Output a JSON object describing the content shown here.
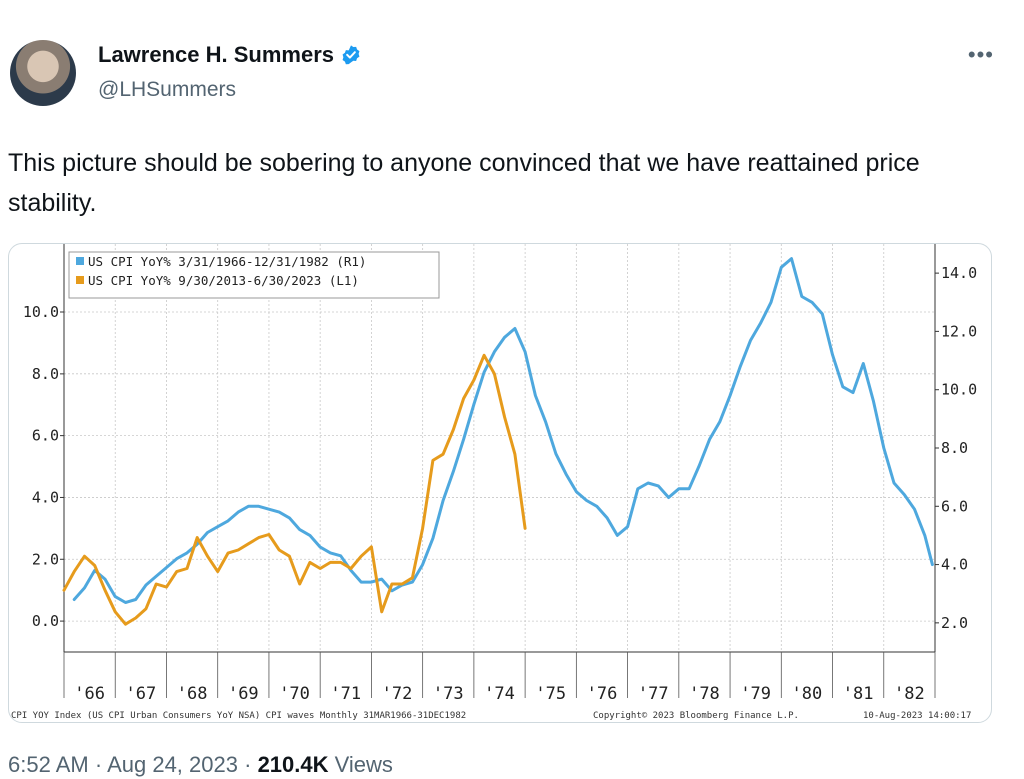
{
  "tweet": {
    "author_name": "Lawrence H. Summers",
    "handle": "@LHSummers",
    "text": "This picture should be sobering to anyone convinced that we have reattained price stability.",
    "time": "6:52 AM",
    "date": "Aug 24, 2023",
    "views_count": "210.4K",
    "views_label": "Views",
    "separator": "·",
    "more_icon": "more-horizontal-icon",
    "verified_icon": "verified-badge-icon",
    "verified_color": "#1d9bf0"
  },
  "chart_data": {
    "type": "line",
    "legend": [
      {
        "label": "US CPI YoY% 3/31/1966-12/31/1982 (R1)",
        "color": "#4ea8de"
      },
      {
        "label": "US CPI YoY% 9/30/2013-6/30/2023 (L1)",
        "color": "#e69b1c"
      }
    ],
    "left_axis": {
      "ylim": [
        -1.0,
        12.2
      ],
      "ticks": [
        "0.0",
        "2.0",
        "4.0",
        "6.0",
        "8.0",
        "10.0"
      ],
      "tick_values": [
        0,
        2,
        4,
        6,
        8,
        10
      ]
    },
    "right_axis": {
      "ylim": [
        1.0,
        15.0
      ],
      "ticks": [
        "2.0",
        "4.0",
        "6.0",
        "8.0",
        "10.0",
        "12.0",
        "14.0"
      ],
      "tick_values": [
        2,
        4,
        6,
        8,
        10,
        12,
        14
      ]
    },
    "x_ticks": [
      "'66",
      "'67",
      "'68",
      "'69",
      "'70",
      "'71",
      "'72",
      "'73",
      "'74",
      "'75",
      "'76",
      "'77",
      "'78",
      "'79",
      "'80",
      "'81",
      "'82"
    ],
    "xlim": [
      1966.0,
      1983.0
    ],
    "series": [
      {
        "name": "US CPI YoY% 3/31/1966-12/31/1982 (R1)",
        "axis": "right",
        "color": "#4ea8de",
        "x": [
          1966.2,
          1966.4,
          1966.6,
          1966.8,
          1967.0,
          1967.2,
          1967.4,
          1967.6,
          1967.8,
          1968.0,
          1968.2,
          1968.4,
          1968.6,
          1968.8,
          1969.0,
          1969.2,
          1969.4,
          1969.6,
          1969.8,
          1970.0,
          1970.2,
          1970.4,
          1970.6,
          1970.8,
          1971.0,
          1971.2,
          1971.4,
          1971.6,
          1971.8,
          1972.0,
          1972.2,
          1972.4,
          1972.6,
          1972.8,
          1973.0,
          1973.2,
          1973.4,
          1973.6,
          1973.8,
          1974.0,
          1974.2,
          1974.4,
          1974.6,
          1974.8,
          1975.0,
          1975.2,
          1975.4,
          1975.6,
          1975.8,
          1976.0,
          1976.2,
          1976.4,
          1976.6,
          1976.8,
          1977.0,
          1977.2,
          1977.4,
          1977.6,
          1977.8,
          1978.0,
          1978.2,
          1978.4,
          1978.6,
          1978.8,
          1979.0,
          1979.2,
          1979.4,
          1979.6,
          1979.8,
          1980.0,
          1980.2,
          1980.4,
          1980.6,
          1980.8,
          1981.0,
          1981.2,
          1981.4,
          1981.6,
          1981.8,
          1982.0,
          1982.2,
          1982.4,
          1982.6,
          1982.8,
          1982.95
        ],
        "values": [
          2.8,
          3.2,
          3.8,
          3.5,
          2.9,
          2.7,
          2.8,
          3.3,
          3.6,
          3.9,
          4.2,
          4.4,
          4.7,
          5.1,
          5.3,
          5.5,
          5.8,
          6.0,
          6.0,
          5.9,
          5.8,
          5.6,
          5.2,
          5.0,
          4.6,
          4.4,
          4.3,
          3.8,
          3.4,
          3.4,
          3.5,
          3.1,
          3.3,
          3.4,
          4.0,
          4.9,
          6.2,
          7.2,
          8.3,
          9.5,
          10.6,
          11.3,
          11.8,
          12.1,
          11.3,
          9.8,
          8.9,
          7.8,
          7.1,
          6.5,
          6.2,
          6.0,
          5.6,
          5.0,
          5.3,
          6.6,
          6.8,
          6.7,
          6.3,
          6.6,
          6.6,
          7.4,
          8.3,
          8.9,
          9.8,
          10.8,
          11.7,
          12.3,
          13.0,
          14.2,
          14.5,
          13.2,
          13.0,
          12.6,
          11.2,
          10.1,
          9.9,
          10.9,
          9.6,
          8.0,
          6.8,
          6.4,
          5.9,
          5.0,
          4.0
        ]
      },
      {
        "name": "US CPI YoY% 9/30/2013-6/30/2023 (L1)",
        "axis": "left",
        "color": "#e69b1c",
        "x": [
          1966.0,
          1966.2,
          1966.4,
          1966.6,
          1966.8,
          1967.0,
          1967.2,
          1967.4,
          1967.6,
          1967.8,
          1968.0,
          1968.2,
          1968.4,
          1968.6,
          1968.8,
          1969.0,
          1969.2,
          1969.4,
          1969.6,
          1969.8,
          1970.0,
          1970.2,
          1970.4,
          1970.6,
          1970.8,
          1971.0,
          1971.2,
          1971.4,
          1971.6,
          1971.8,
          1972.0,
          1972.2,
          1972.4,
          1972.6,
          1972.8,
          1973.0,
          1973.2,
          1973.4,
          1973.6,
          1973.8,
          1974.0,
          1974.2,
          1974.4,
          1974.6,
          1974.8,
          1975.0
        ],
        "values": [
          1.0,
          1.6,
          2.1,
          1.8,
          1.0,
          0.3,
          -0.1,
          0.1,
          0.4,
          1.2,
          1.1,
          1.6,
          1.7,
          2.7,
          2.1,
          1.6,
          2.2,
          2.3,
          2.5,
          2.7,
          2.8,
          2.3,
          2.1,
          1.2,
          1.9,
          1.7,
          1.9,
          1.9,
          1.7,
          2.1,
          2.4,
          0.3,
          1.2,
          1.2,
          1.4,
          3.0,
          5.2,
          5.4,
          6.2,
          7.2,
          7.8,
          8.6,
          8.0,
          6.6,
          5.4,
          3.0
        ]
      }
    ],
    "footer_left": "CPI YOY Index (US CPI Urban Consumers YoY NSA) CPI waves  Monthly 31MAR1966-31DEC1982",
    "footer_center": "Copyright© 2023 Bloomberg Finance L.P.",
    "footer_right": "10-Aug-2023 14:00:17"
  }
}
